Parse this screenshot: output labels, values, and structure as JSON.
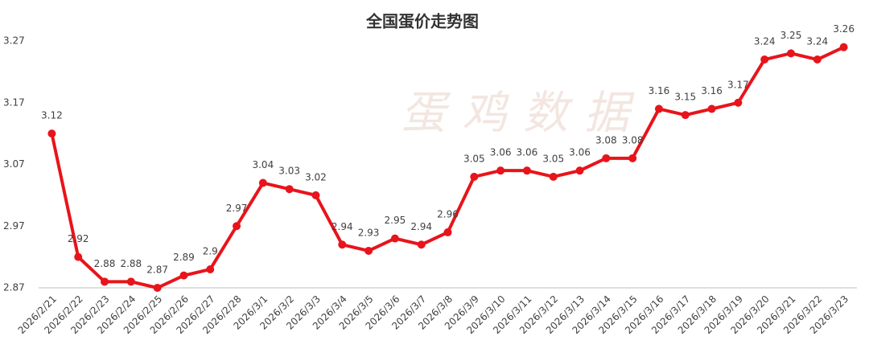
{
  "chart_data": {
    "type": "line",
    "title": "全国蛋价走势图",
    "watermark": "蛋鸡数据",
    "categories": [
      "2026/2/21",
      "2026/2/22",
      "2026/2/23",
      "2026/2/24",
      "2026/2/25",
      "2026/2/26",
      "2026/2/27",
      "2026/2/28",
      "2026/3/1",
      "2026/3/2",
      "2026/3/3",
      "2026/3/4",
      "2026/3/5",
      "2026/3/6",
      "2026/3/7",
      "2026/3/8",
      "2026/3/9",
      "2026/3/10",
      "2026/3/11",
      "2026/3/12",
      "2026/3/13",
      "2026/3/14",
      "2026/3/15",
      "2026/3/16",
      "2026/3/17",
      "2026/3/18",
      "2026/3/19",
      "2026/3/20",
      "2026/3/21",
      "2026/3/22",
      "2026/3/23"
    ],
    "values": [
      3.12,
      2.92,
      2.88,
      2.88,
      2.87,
      2.89,
      2.9,
      2.97,
      3.04,
      3.03,
      3.02,
      2.94,
      2.93,
      2.95,
      2.94,
      2.96,
      3.05,
      3.06,
      3.06,
      3.05,
      3.06,
      3.08,
      3.08,
      3.16,
      3.15,
      3.16,
      3.17,
      3.24,
      3.25,
      3.24,
      3.26
    ],
    "color": "#e8141b",
    "ylim": [
      2.87,
      3.27
    ],
    "yticks": [
      2.87,
      2.97,
      3.07,
      3.17,
      3.27
    ],
    "grid": false
  }
}
